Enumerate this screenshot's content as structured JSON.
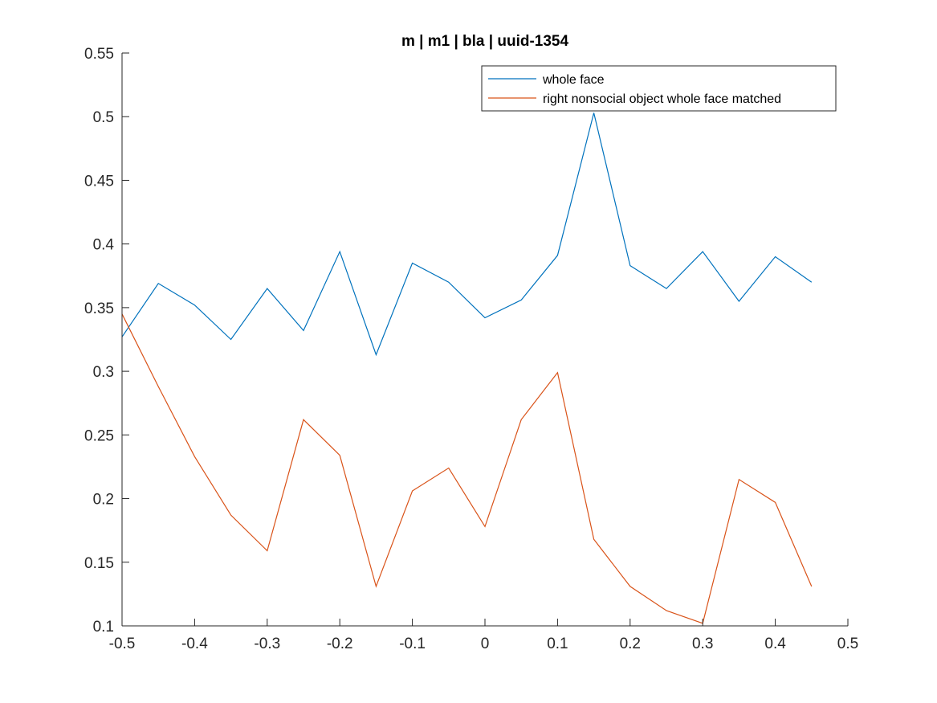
{
  "chart_data": {
    "type": "line",
    "title": "m | m1 | bla | uuid-1354",
    "xlabel": "",
    "ylabel": "",
    "xlim": [
      -0.5,
      0.5
    ],
    "ylim": [
      0.1,
      0.55
    ],
    "xticks": [
      -0.5,
      -0.4,
      -0.3,
      -0.2,
      -0.1,
      0,
      0.1,
      0.2,
      0.3,
      0.4,
      0.5
    ],
    "xtick_labels": [
      "-0.5",
      "-0.4",
      "-0.3",
      "-0.2",
      "-0.1",
      "0",
      "0.1",
      "0.2",
      "0.3",
      "0.4",
      "0.5"
    ],
    "yticks": [
      0.1,
      0.15,
      0.2,
      0.25,
      0.3,
      0.35,
      0.4,
      0.45,
      0.5,
      0.55
    ],
    "ytick_labels": [
      "0.1",
      "0.15",
      "0.2",
      "0.25",
      "0.3",
      "0.35",
      "0.4",
      "0.45",
      "0.5",
      "0.55"
    ],
    "grid": false,
    "legend_position": "top-right",
    "x": [
      -0.5,
      -0.45,
      -0.4,
      -0.35,
      -0.3,
      -0.25,
      -0.2,
      -0.15,
      -0.1,
      -0.05,
      0,
      0.05,
      0.1,
      0.15,
      0.2,
      0.25,
      0.3,
      0.35,
      0.4,
      0.45
    ],
    "series": [
      {
        "name": "whole face",
        "color": "#0072BD",
        "values": [
          0.327,
          0.369,
          0.352,
          0.325,
          0.365,
          0.332,
          0.394,
          0.313,
          0.385,
          0.37,
          0.342,
          0.356,
          0.391,
          0.503,
          0.383,
          0.365,
          0.394,
          0.355,
          0.39,
          0.37
        ]
      },
      {
        "name": "right nonsocial object whole face matched",
        "color": "#D95319",
        "values": [
          0.345,
          0.288,
          0.233,
          0.187,
          0.159,
          0.262,
          0.234,
          0.131,
          0.206,
          0.224,
          0.178,
          0.262,
          0.299,
          0.168,
          0.131,
          0.112,
          0.102,
          0.215,
          0.197,
          0.131
        ]
      }
    ]
  }
}
